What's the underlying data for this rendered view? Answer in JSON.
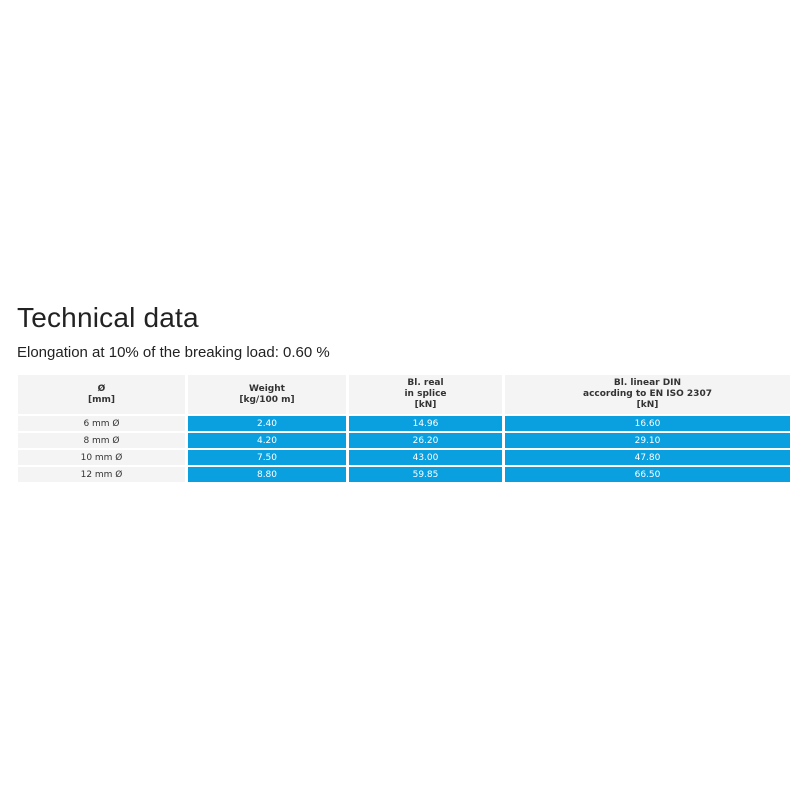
{
  "title": "Technical data",
  "subtitle": "Elongation at 10% of the breaking load: 0.60 %",
  "colors": {
    "accent": "#0a9fdf",
    "header_bg": "#f4f4f4"
  },
  "table": {
    "headers": [
      "Ø\n[mm]",
      "Weight\n[kg/100 m]",
      "Bl. real\nin splice\n[kN]",
      "Bl. linear DIN\naccording to EN ISO 2307\n[kN]"
    ],
    "rows": [
      [
        "6 mm Ø",
        "2.40",
        "14.96",
        "16.60"
      ],
      [
        "8 mm Ø",
        "4.20",
        "26.20",
        "29.10"
      ],
      [
        "10 mm Ø",
        "7.50",
        "43.00",
        "47.80"
      ],
      [
        "12 mm Ø",
        "8.80",
        "59.85",
        "66.50"
      ]
    ]
  }
}
